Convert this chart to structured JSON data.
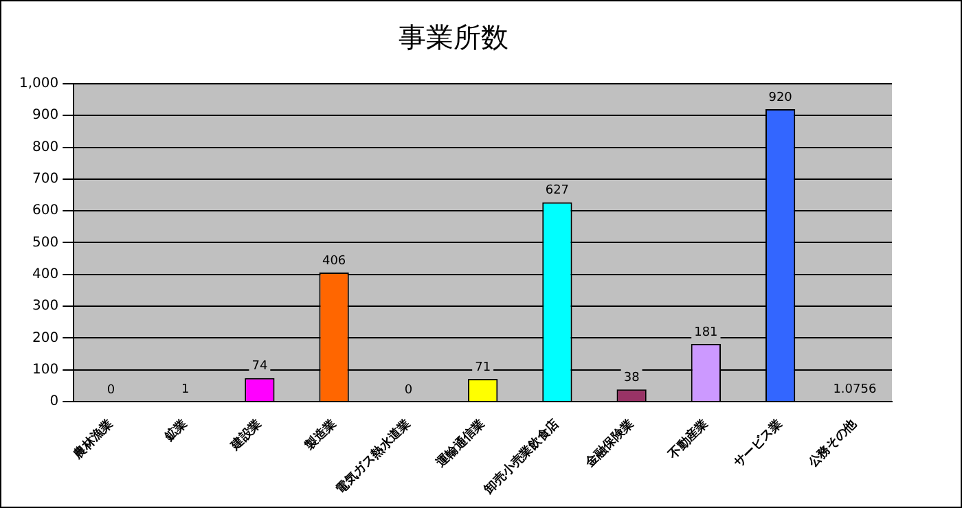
{
  "chart_data": {
    "type": "bar",
    "title": "事業所数",
    "categories": [
      "農林漁業",
      "鉱業",
      "建設業",
      "製造業",
      "電気ガス熱水道業",
      "運輸通信業",
      "卸売小売業飲食店",
      "金融保険業",
      "不動産業",
      "サービス業",
      "公務その他"
    ],
    "values": [
      0,
      1,
      74,
      406,
      0,
      71,
      627,
      38,
      181,
      920,
      1.0756
    ],
    "colors": [
      "#339966",
      "#993300",
      "#ff00ff",
      "#ff6600",
      "#99cc00",
      "#ffff00",
      "#00ffff",
      "#993366",
      "#cc99ff",
      "#3366ff",
      "#969696"
    ],
    "ylim": [
      0,
      1000
    ],
    "yticks": [
      0,
      100,
      200,
      300,
      400,
      500,
      600,
      700,
      800,
      900,
      {
        "value": 1000,
        "label": "1,000"
      }
    ],
    "grid": "y",
    "data_labels": true,
    "legend": false
  }
}
